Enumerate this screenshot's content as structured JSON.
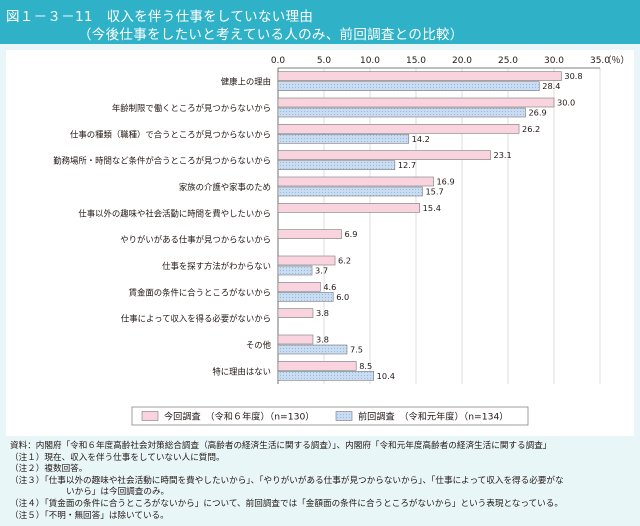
{
  "figure": {
    "title_line1": "図１－３－11　収入を伴う仕事をしていない理由",
    "title_line2": "（今後仕事をしたいと考えている人のみ、前回調査との比較）"
  },
  "chart_data": {
    "type": "bar",
    "orientation": "horizontal",
    "unit_label": "（％）",
    "xlim": [
      0,
      35
    ],
    "ticks": [
      "0.0",
      "5.0",
      "10.0",
      "15.0",
      "20.0",
      "25.0",
      "30.0",
      "35.0"
    ],
    "grid": true,
    "legend_position": "bottom",
    "categories": [
      "健康上の理由",
      "年齢制限で働くところが見つからないから",
      "仕事の種類（職種）で合うところが見つからないから",
      "勤務場所・時間など条件が合うところが見つからないから",
      "家族の介護や家事のため",
      "仕事以外の趣味や社会活動に時間を費やしたいから",
      "やりがいがある仕事が見つからないから",
      "仕事を探す方法がわからない",
      "賃金面の条件に合うところがないから",
      "仕事によって収入を得る必要がないから",
      "その他",
      "特に理由はない"
    ],
    "series": [
      {
        "name": "今回調査　（令和６年度）（n=130）",
        "color": "#f9d4df",
        "values": [
          30.8,
          30.0,
          26.2,
          23.1,
          16.9,
          15.4,
          6.9,
          6.2,
          4.6,
          3.8,
          3.8,
          8.5
        ],
        "labels": [
          "30.8",
          "30.0",
          "26.2",
          "23.1",
          "16.9",
          "15.4",
          "6.9",
          "6.2",
          "4.6",
          "3.8",
          "3.8",
          "8.5"
        ]
      },
      {
        "name": "前回調査　（令和元年度）（n=134）",
        "color": "#c9dcf2",
        "values": [
          28.4,
          26.9,
          14.2,
          12.7,
          15.7,
          null,
          null,
          3.7,
          6.0,
          null,
          7.5,
          10.4
        ],
        "labels": [
          "28.4",
          "26.9",
          "14.2",
          "12.7",
          "15.7",
          null,
          null,
          "3.7",
          "6.0",
          null,
          "7.5",
          "10.4"
        ]
      }
    ]
  },
  "notes": [
    "資料：内閣府「令和６年度高齢社会対策総合調査（高齢者の経済生活に関する調査）」、内閣府「令和元年度高齢者の経済生活に関する調査」",
    "（注１）現在、収入を伴う仕事をしていない人に質問。",
    "（注２）複数回答。",
    "（注３）「仕事以外の趣味や社会活動に時間を費やしたいから」、「やりがいがある仕事が見つからないから」、「仕事によって収入を得る必要がな",
    "いから」は今回調査のみ。",
    "（注４）「賃金面の条件に合うところがないから」について、前回調査では「金額面の条件に合うところがないから」という表現となっている。",
    "（注５）「不明・無回答」は除いている。"
  ]
}
